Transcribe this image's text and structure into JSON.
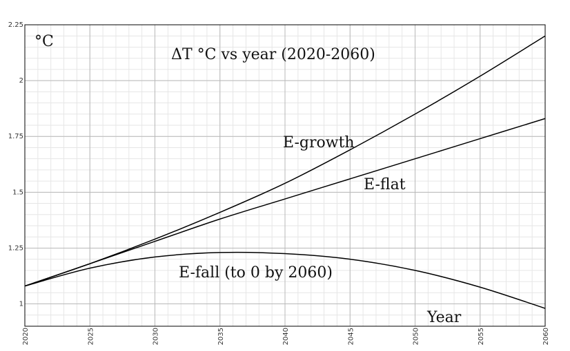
{
  "chart_data": {
    "type": "line",
    "title": "ΔT °C vs year (2020-2060)",
    "ylabel": "°C",
    "xlabel": "Year",
    "xlim": [
      2020,
      2060
    ],
    "ylim": [
      0.9,
      2.25
    ],
    "x_ticks": [
      "2020",
      "2025",
      "2030",
      "2035",
      "2040",
      "2045",
      "2050",
      "2055",
      "2060"
    ],
    "y_ticks": [
      "1",
      "1.25",
      "1.5",
      "1.75",
      "2",
      "2.25"
    ],
    "grid": true,
    "x": [
      2020,
      2025,
      2030,
      2035,
      2040,
      2045,
      2050,
      2055,
      2060
    ],
    "series": [
      {
        "name": "E-growth",
        "values": [
          1.08,
          1.18,
          1.29,
          1.41,
          1.54,
          1.69,
          1.85,
          2.02,
          2.2
        ]
      },
      {
        "name": "E-flat",
        "values": [
          1.08,
          1.18,
          1.28,
          1.38,
          1.47,
          1.56,
          1.65,
          1.74,
          1.83
        ]
      },
      {
        "name": "E-fall (to 0 by 2060)",
        "values": [
          1.08,
          1.16,
          1.21,
          1.23,
          1.225,
          1.2,
          1.15,
          1.075,
          0.98
        ]
      }
    ]
  }
}
